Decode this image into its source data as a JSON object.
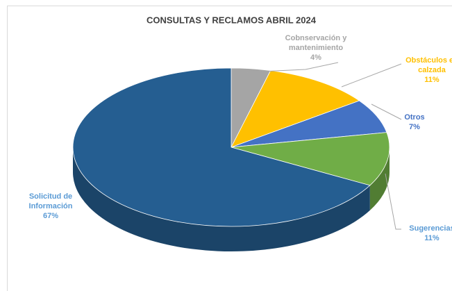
{
  "chart_data": {
    "type": "pie",
    "title": "CONSULTAS Y RECLAMOS ABRIL 2024",
    "categories": [
      "Cobnservación y mantenimiento",
      "Obstáculos en calzada",
      "Otros",
      "Sugerencias",
      "Solicitud de Información"
    ],
    "values": [
      4,
      11,
      7,
      11,
      67
    ],
    "value_labels": [
      "4%",
      "11%",
      "7%",
      "11%",
      "67%"
    ],
    "colors": [
      "#a5a5a5",
      "#ffc000",
      "#4472c4",
      "#70ad47",
      "#255e91"
    ]
  }
}
